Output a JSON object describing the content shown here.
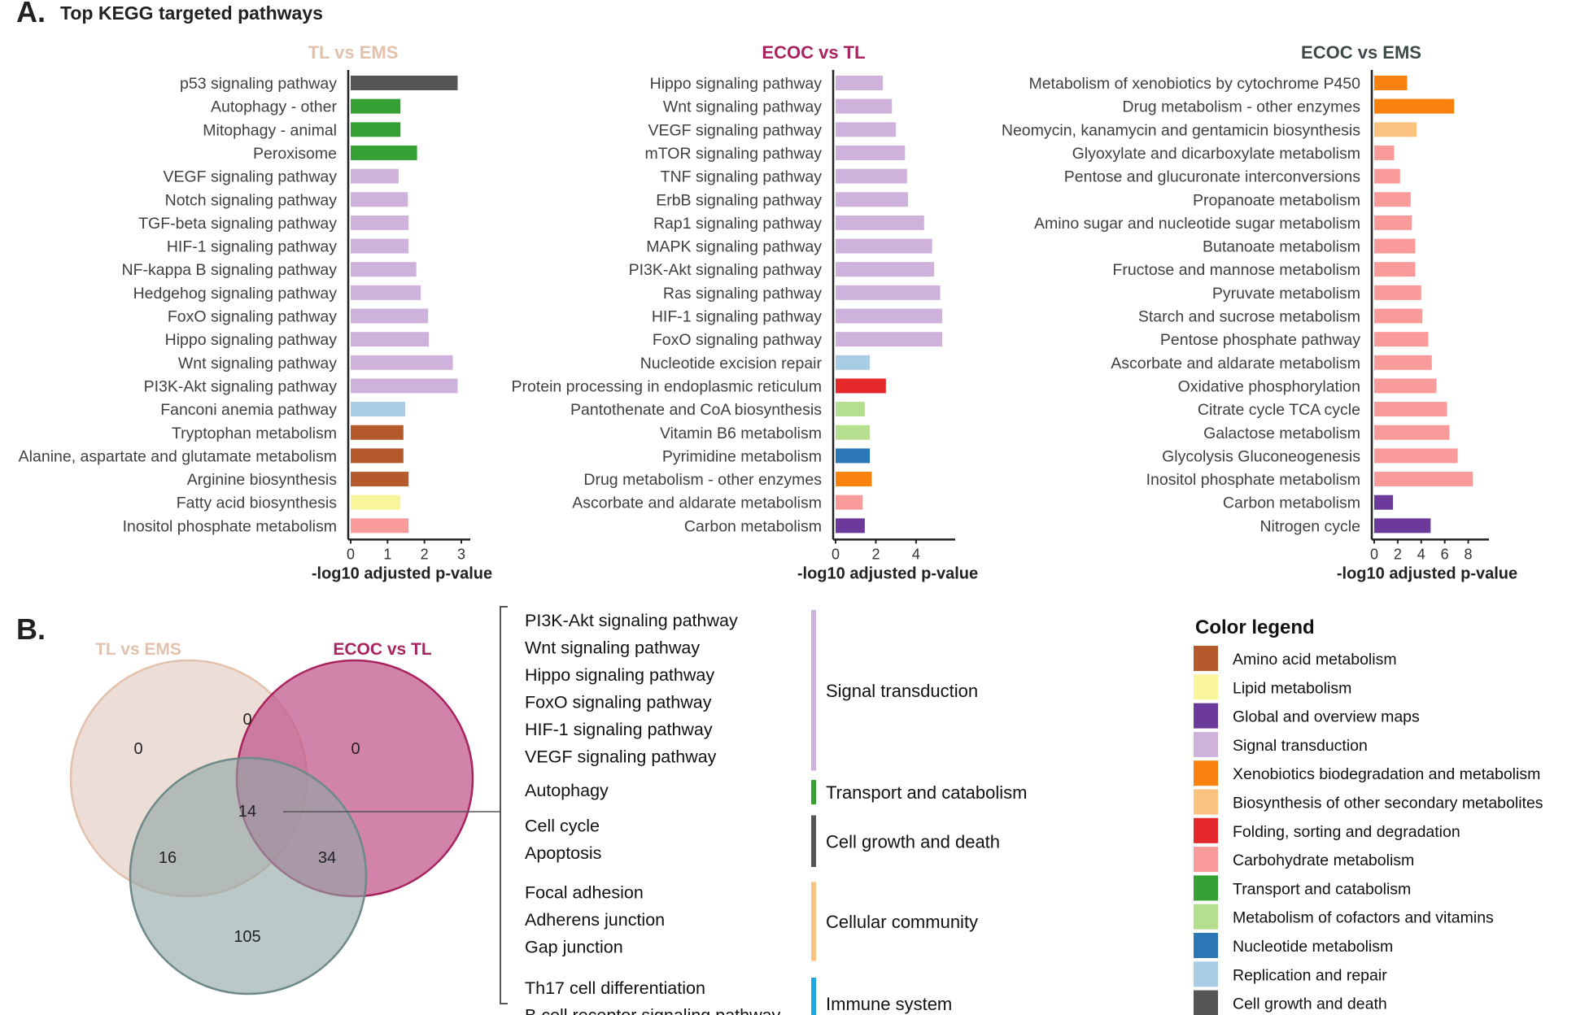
{
  "figure": {
    "panel_a_letter": "A.",
    "panel_a_title": "Top KEGG targeted pathways",
    "panel_b_letter": "B."
  },
  "colors": {
    "Amino acid metabolism": "#b45a2d",
    "Lipid metabolism": "#f8f59a",
    "Global and overview maps": "#6b3a9a",
    "Signal transduction": "#cfb2dc",
    "Xenobiotics biodegradation and metabolism": "#f9810e",
    "Biosynthesis of other secondary metabolites": "#f9c27e",
    "Folding, sorting and degradation": "#e5292b",
    "Carbohydrate metabolism": "#f99b9b",
    "Transport and catabolism": "#35a135",
    "Metabolism of cofactors and vitamins": "#b5df8f",
    "Nucleotide metabolism": "#2c78b7",
    "Replication and repair": "#a8cde3",
    "Cell growth and death": "#555555"
  },
  "chart_data": [
    {
      "type": "bar",
      "orientation": "horizontal",
      "title": "TL vs EMS",
      "title_color": "#e2c1ad",
      "xlabel": "-log10 adjusted p-value",
      "xlim": [
        0,
        3
      ],
      "xticks": [
        0,
        1,
        2,
        3
      ],
      "bars": [
        {
          "label": "p53 signaling pathway",
          "value": 2.9,
          "category": "Cell growth and death"
        },
        {
          "label": "Autophagy - other",
          "value": 1.35,
          "category": "Transport and catabolism"
        },
        {
          "label": "Mitophagy - animal",
          "value": 1.35,
          "category": "Transport and catabolism"
        },
        {
          "label": "Peroxisome",
          "value": 1.8,
          "category": "Transport and catabolism"
        },
        {
          "label": "VEGF signaling pathway",
          "value": 1.3,
          "category": "Signal transduction"
        },
        {
          "label": "Notch signaling pathway",
          "value": 1.55,
          "category": "Signal transduction"
        },
        {
          "label": "TGF-beta signaling pathway",
          "value": 1.57,
          "category": "Signal transduction"
        },
        {
          "label": "HIF-1 signaling pathway",
          "value": 1.57,
          "category": "Signal transduction"
        },
        {
          "label": "NF-kappa B signaling pathway",
          "value": 1.78,
          "category": "Signal transduction"
        },
        {
          "label": "Hedgehog signaling pathway",
          "value": 1.9,
          "category": "Signal transduction"
        },
        {
          "label": "FoxO signaling pathway",
          "value": 2.1,
          "category": "Signal transduction"
        },
        {
          "label": "Hippo signaling pathway",
          "value": 2.12,
          "category": "Signal transduction"
        },
        {
          "label": "Wnt signaling pathway",
          "value": 2.77,
          "category": "Signal transduction"
        },
        {
          "label": "PI3K-Akt signaling pathway",
          "value": 2.9,
          "category": "Signal transduction"
        },
        {
          "label": "Fanconi anemia pathway",
          "value": 1.48,
          "category": "Replication and repair"
        },
        {
          "label": "Tryptophan metabolism",
          "value": 1.43,
          "category": "Amino acid metabolism"
        },
        {
          "label": "Alanine, aspartate and glutamate metabolism",
          "value": 1.43,
          "category": "Amino acid metabolism"
        },
        {
          "label": "Arginine biosynthesis",
          "value": 1.57,
          "category": "Amino acid metabolism"
        },
        {
          "label": "Fatty acid biosynthesis",
          "value": 1.35,
          "category": "Lipid metabolism"
        },
        {
          "label": "Inositol phosphate metabolism",
          "value": 1.57,
          "category": "Carbohydrate metabolism"
        }
      ]
    },
    {
      "type": "bar",
      "orientation": "horizontal",
      "title": "ECOC vs TL",
      "title_color": "#a9235f",
      "xlabel": "-log10 adjusted p-value",
      "xlim": [
        0,
        5.5
      ],
      "xticks": [
        0,
        2,
        4
      ],
      "bars": [
        {
          "label": "Hippo signaling pathway",
          "value": 2.35,
          "category": "Signal transduction"
        },
        {
          "label": "Wnt signaling pathway",
          "value": 2.8,
          "category": "Signal transduction"
        },
        {
          "label": "VEGF signaling pathway",
          "value": 3.0,
          "category": "Signal transduction"
        },
        {
          "label": "mTOR signaling pathway",
          "value": 3.45,
          "category": "Signal transduction"
        },
        {
          "label": "TNF signaling pathway",
          "value": 3.55,
          "category": "Signal transduction"
        },
        {
          "label": "ErbB signaling pathway",
          "value": 3.6,
          "category": "Signal transduction"
        },
        {
          "label": "Rap1 signaling pathway",
          "value": 4.4,
          "category": "Signal transduction"
        },
        {
          "label": "MAPK signaling pathway",
          "value": 4.8,
          "category": "Signal transduction"
        },
        {
          "label": "PI3K-Akt signaling pathway",
          "value": 4.9,
          "category": "Signal transduction"
        },
        {
          "label": "Ras signaling pathway",
          "value": 5.2,
          "category": "Signal transduction"
        },
        {
          "label": "HIF-1 signaling pathway",
          "value": 5.3,
          "category": "Signal transduction"
        },
        {
          "label": "FoxO signaling pathway",
          "value": 5.3,
          "category": "Signal transduction"
        },
        {
          "label": "Nucleotide excision repair",
          "value": 1.7,
          "category": "Replication and repair"
        },
        {
          "label": "Protein processing in endoplasmic reticulum",
          "value": 2.5,
          "category": "Folding, sorting and degradation"
        },
        {
          "label": "Pantothenate and CoA biosynthesis",
          "value": 1.45,
          "category": "Metabolism of cofactors and vitamins"
        },
        {
          "label": "Vitamin B6 metabolism",
          "value": 1.7,
          "category": "Metabolism of cofactors and vitamins"
        },
        {
          "label": "Pyrimidine metabolism",
          "value": 1.7,
          "category": "Nucleotide metabolism"
        },
        {
          "label": "Drug metabolism - other enzymes",
          "value": 1.8,
          "category": "Xenobiotics biodegradation and metabolism"
        },
        {
          "label": "Ascorbate and aldarate metabolism",
          "value": 1.35,
          "category": "Carbohydrate metabolism"
        },
        {
          "label": "Carbon metabolism",
          "value": 1.45,
          "category": "Global and overview maps"
        }
      ]
    },
    {
      "type": "bar",
      "orientation": "horizontal",
      "title": "ECOC vs EMS",
      "title_color": "#3e4a4a",
      "xlabel": "-log10 adjusted p-value",
      "xlim": [
        0,
        9
      ],
      "xticks": [
        0,
        2,
        4,
        6,
        8
      ],
      "bars": [
        {
          "label": "Metabolism of xenobiotics by cytochrome P450",
          "value": 2.8,
          "category": "Xenobiotics biodegradation and metabolism"
        },
        {
          "label": "Drug metabolism - other enzymes",
          "value": 6.8,
          "category": "Xenobiotics biodegradation and metabolism"
        },
        {
          "label": "Neomycin, kanamycin and gentamicin biosynthesis",
          "value": 3.6,
          "category": "Biosynthesis of other secondary metabolites"
        },
        {
          "label": "Glyoxylate and dicarboxylate metabolism",
          "value": 1.7,
          "category": "Carbohydrate metabolism"
        },
        {
          "label": "Pentose and glucuronate interconversions",
          "value": 2.2,
          "category": "Carbohydrate metabolism"
        },
        {
          "label": "Propanoate metabolism",
          "value": 3.1,
          "category": "Carbohydrate metabolism"
        },
        {
          "label": "Amino sugar and nucleotide sugar metabolism",
          "value": 3.2,
          "category": "Carbohydrate metabolism"
        },
        {
          "label": "Butanoate metabolism",
          "value": 3.5,
          "category": "Carbohydrate metabolism"
        },
        {
          "label": "Fructose and mannose metabolism",
          "value": 3.5,
          "category": "Carbohydrate metabolism"
        },
        {
          "label": "Pyruvate metabolism",
          "value": 4.0,
          "category": "Carbohydrate metabolism"
        },
        {
          "label": "Starch and sucrose metabolism",
          "value": 4.1,
          "category": "Carbohydrate metabolism"
        },
        {
          "label": "Pentose phosphate pathway",
          "value": 4.6,
          "category": "Carbohydrate metabolism"
        },
        {
          "label": "Ascorbate and aldarate metabolism",
          "value": 4.9,
          "category": "Carbohydrate metabolism"
        },
        {
          "label": "Oxidative phosphorylation",
          "value": 5.3,
          "category": "Carbohydrate metabolism"
        },
        {
          "label": "Citrate cycle TCA cycle",
          "value": 6.2,
          "category": "Carbohydrate metabolism"
        },
        {
          "label": "Galactose metabolism",
          "value": 6.4,
          "category": "Carbohydrate metabolism"
        },
        {
          "label": "Glycolysis Gluconeogenesis",
          "value": 7.1,
          "category": "Carbohydrate metabolism"
        },
        {
          "label": "Inositol phosphate metabolism",
          "value": 8.4,
          "category": "Carbohydrate metabolism"
        },
        {
          "label": "Carbon metabolism",
          "value": 1.6,
          "category": "Global and overview maps"
        },
        {
          "label": "Nitrogen cycle",
          "value": 4.8,
          "category": "Global and overview maps"
        }
      ]
    }
  ],
  "venn": {
    "sets": [
      {
        "name": "TL vs EMS",
        "color": "#e2c1ad",
        "fill": "#dcc3b5",
        "stroke": "#e2c1ad"
      },
      {
        "name": "ECOC vs TL",
        "color": "#a9235f",
        "fill": "#c25a8e",
        "stroke": "#a9235f"
      },
      {
        "name": "ECOC vs EMS",
        "color": "#6d8a89",
        "fill": "#8fa6a6",
        "stroke": "#6d8a89"
      }
    ],
    "regions": {
      "tl_only": "0",
      "ecoc_tl_only": "0",
      "tl_and_ecoc_tl": "0",
      "all_three": "14",
      "tl_and_ecoc_ems": "16",
      "ecoc_tl_and_ecoc_ems": "34",
      "ecoc_ems_only": "105"
    }
  },
  "pathway_groups": [
    {
      "group": "Signal transduction",
      "color": "#cfb2dc",
      "items": [
        "PI3K-Akt signaling pathway",
        "Wnt signaling pathway",
        "Hippo signaling pathway",
        "FoxO signaling pathway",
        "HIF-1 signaling pathway",
        "VEGF signaling pathway"
      ]
    },
    {
      "group": "Transport and catabolism",
      "color": "#35a135",
      "items": [
        "Autophagy"
      ]
    },
    {
      "group": "Cell growth and death",
      "color": "#555555",
      "items": [
        "Cell cycle",
        "Apoptosis"
      ]
    },
    {
      "group": "Cellular community",
      "color": "#f9c27e",
      "items": [
        "Focal adhesion",
        "Adherens junction",
        "Gap junction"
      ]
    },
    {
      "group": "Immune system",
      "color": "#1ea7e1",
      "items": [
        "Th17 cell differentiation",
        "B cell receptor signaling pathway"
      ]
    }
  ],
  "legend": {
    "title": "Color legend",
    "items": [
      {
        "label": "Amino acid metabolism",
        "color": "#b45a2d"
      },
      {
        "label": "Lipid metabolism",
        "color": "#f8f59a"
      },
      {
        "label": "Global and overview maps",
        "color": "#6b3a9a"
      },
      {
        "label": "Signal transduction",
        "color": "#cfb2dc"
      },
      {
        "label": "Xenobiotics biodegradation and metabolism",
        "color": "#f9810e"
      },
      {
        "label": "Biosynthesis of other secondary metabolites",
        "color": "#f9c27e"
      },
      {
        "label": "Folding, sorting and degradation",
        "color": "#e5292b"
      },
      {
        "label": "Carbohydrate metabolism",
        "color": "#f99b9b"
      },
      {
        "label": "Transport and catabolism",
        "color": "#35a135"
      },
      {
        "label": "Metabolism of cofactors and vitamins",
        "color": "#b5df8f"
      },
      {
        "label": "Nucleotide metabolism",
        "color": "#2c78b7"
      },
      {
        "label": "Replication and repair",
        "color": "#a8cde3"
      },
      {
        "label": "Cell growth and death",
        "color": "#555555"
      }
    ]
  }
}
